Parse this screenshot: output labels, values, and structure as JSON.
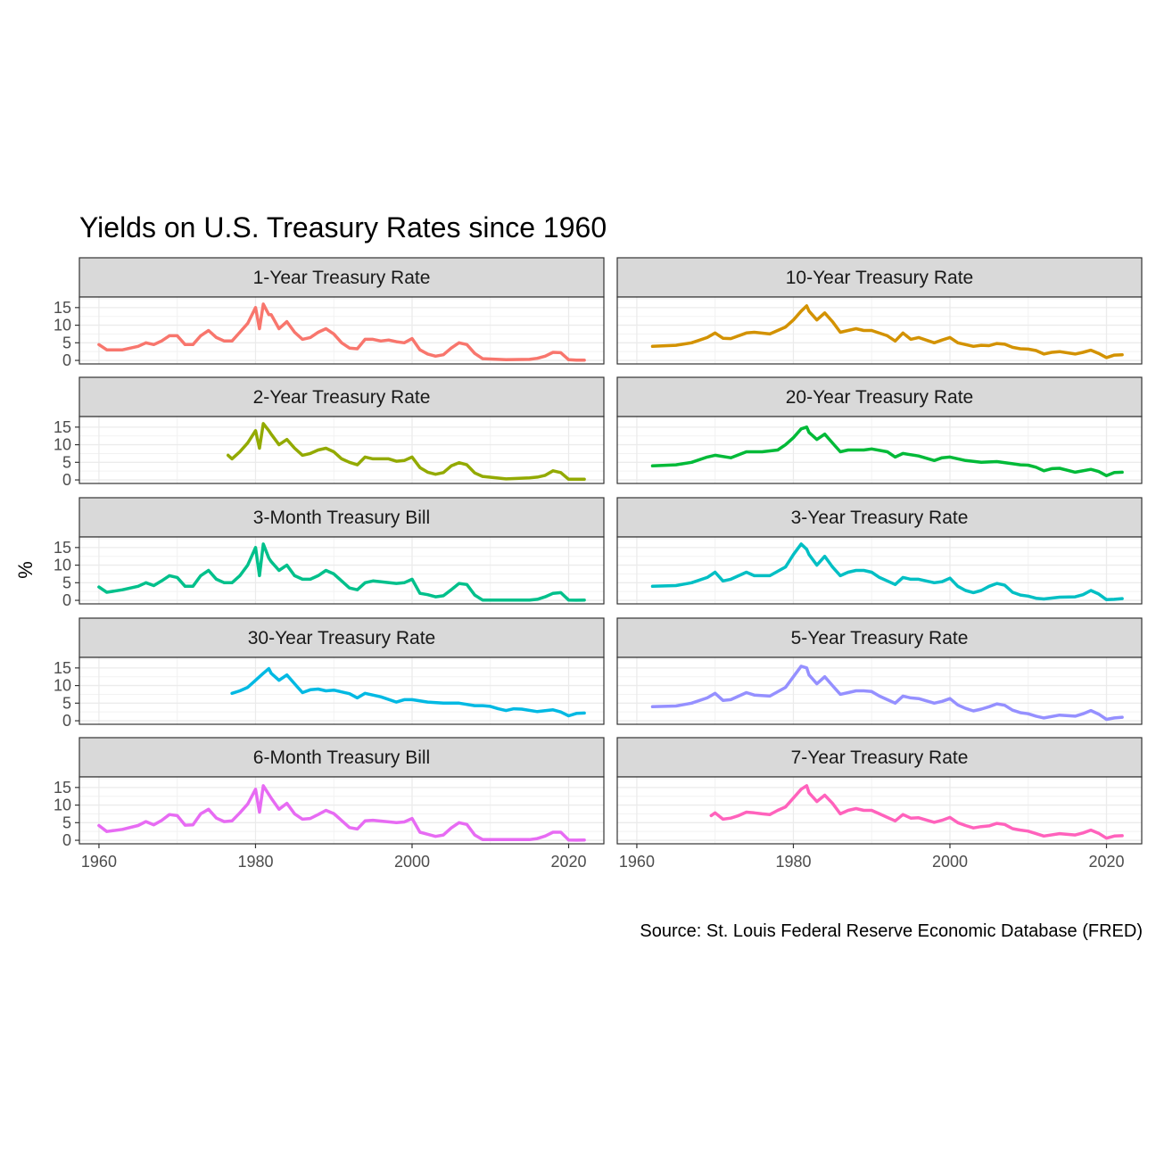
{
  "chart_data": {
    "type": "line",
    "title": "Yields on U.S. Treasury Rates since 1960",
    "ylabel": "%",
    "xlabel": "",
    "caption": "Source: St. Louis Federal Reserve Economic Database (FRED)",
    "xlim": [
      1957.5,
      2024.5
    ],
    "ylim": [
      -1,
      18
    ],
    "x_ticks": [
      1960,
      1980,
      2000,
      2020
    ],
    "y_ticks": [
      0,
      5,
      10,
      15
    ],
    "grid": true,
    "legend": "none",
    "layout": "facet grid, 5 rows x 2 columns",
    "panels": [
      {
        "name": "1-Year Treasury Rate",
        "color": "#F8766D",
        "x": [
          1960,
          1961,
          1963,
          1965,
          1966,
          1967,
          1968,
          1969,
          1970,
          1971,
          1972,
          1973,
          1974,
          1975,
          1976,
          1977,
          1978,
          1979,
          1980,
          1980.5,
          1981,
          1981.7,
          1982,
          1983,
          1984,
          1985,
          1986,
          1987,
          1988,
          1989,
          1990,
          1991,
          1992,
          1993,
          1994,
          1995,
          1996,
          1997,
          1998,
          1999,
          2000,
          2001,
          2002,
          2003,
          2004,
          2005,
          2006,
          2007,
          2008,
          2009,
          2012,
          2015,
          2016,
          2017,
          2018,
          2019,
          2020,
          2021,
          2022
        ],
        "y": [
          4.5,
          3,
          3,
          4,
          5,
          4.5,
          5.5,
          7,
          7,
          4.5,
          4.5,
          7,
          8.5,
          6.5,
          5.5,
          5.5,
          8,
          10.5,
          15,
          9,
          16,
          13,
          13,
          9,
          11,
          8,
          6,
          6.5,
          8,
          9,
          7.5,
          5,
          3.5,
          3.3,
          6,
          6,
          5.5,
          5.8,
          5.3,
          5,
          6.2,
          3,
          1.8,
          1.2,
          1.6,
          3.5,
          5,
          4.5,
          2,
          0.5,
          0.2,
          0.3,
          0.6,
          1.2,
          2.3,
          2.2,
          0.2,
          0.1,
          0.1
        ]
      },
      {
        "name": "10-Year Treasury Rate",
        "color": "#D39200",
        "x": [
          1962,
          1965,
          1967,
          1969,
          1970,
          1971,
          1972,
          1974,
          1975,
          1977,
          1979,
          1980,
          1981,
          1981.7,
          1982,
          1983,
          1984,
          1985,
          1986,
          1987,
          1988,
          1989,
          1990,
          1992,
          1993,
          1994,
          1995,
          1996,
          1998,
          1999,
          2000,
          2001,
          2002,
          2003,
          2004,
          2005,
          2006,
          2007,
          2008,
          2009,
          2010,
          2011,
          2012,
          2013,
          2014,
          2016,
          2017,
          2018,
          2019,
          2020,
          2021,
          2022
        ],
        "y": [
          4,
          4.3,
          5,
          6.5,
          7.8,
          6.3,
          6.2,
          7.8,
          8,
          7.5,
          9.5,
          11.5,
          14,
          15.5,
          14,
          11.5,
          13.5,
          11,
          8,
          8.5,
          9,
          8.5,
          8.5,
          7,
          5.5,
          7.8,
          6,
          6.5,
          5,
          5.8,
          6.5,
          5,
          4.5,
          4,
          4.3,
          4.2,
          4.8,
          4.6,
          3.7,
          3.3,
          3.2,
          2.8,
          1.8,
          2.3,
          2.5,
          1.8,
          2.3,
          2.9,
          2,
          0.8,
          1.5,
          1.6
        ]
      },
      {
        "name": "2-Year Treasury Rate",
        "color": "#93AA00",
        "x": [
          1976.5,
          1977,
          1978,
          1979,
          1980,
          1980.5,
          1981,
          1981.7,
          1982,
          1983,
          1984,
          1985,
          1986,
          1987,
          1988,
          1989,
          1990,
          1991,
          1992,
          1993,
          1994,
          1995,
          1996,
          1997,
          1998,
          1999,
          2000,
          2001,
          2002,
          2003,
          2004,
          2005,
          2006,
          2007,
          2008,
          2009,
          2012,
          2015,
          2016,
          2017,
          2018,
          2019,
          2020,
          2021,
          2022
        ],
        "y": [
          7,
          6,
          8,
          10.5,
          14,
          9,
          16,
          14,
          13,
          10,
          11.5,
          9,
          7,
          7.5,
          8.5,
          9,
          8,
          6,
          5,
          4.3,
          6.5,
          6,
          6,
          6,
          5.3,
          5.5,
          6.5,
          3.5,
          2.2,
          1.6,
          2.1,
          4,
          4.9,
          4.3,
          2,
          1,
          0.3,
          0.6,
          0.8,
          1.3,
          2.6,
          2.1,
          0.2,
          0.2,
          0.2
        ]
      },
      {
        "name": "20-Year Treasury Rate",
        "color": "#00BA38",
        "x": [
          1962,
          1965,
          1967,
          1969,
          1970,
          1972,
          1974,
          1976,
          1978,
          1979,
          1980,
          1981,
          1981.7,
          1982,
          1983,
          1984,
          1985,
          1986,
          1987,
          1989,
          1990,
          1992,
          1993,
          1994,
          1996,
          1998,
          1999,
          2000,
          2002,
          2004,
          2006,
          2008,
          2009,
          2010,
          2011,
          2012,
          2013,
          2014,
          2016,
          2018,
          2019,
          2020,
          2021,
          2022
        ],
        "y": [
          4,
          4.3,
          5,
          6.5,
          7,
          6.3,
          8,
          8,
          8.5,
          10,
          12,
          14.5,
          15,
          13.5,
          11.5,
          13,
          10.5,
          8,
          8.5,
          8.5,
          8.8,
          8,
          6.5,
          7.5,
          6.8,
          5.5,
          6.3,
          6.5,
          5.5,
          5,
          5.2,
          4.6,
          4.3,
          4.2,
          3.6,
          2.6,
          3.2,
          3.3,
          2.2,
          3,
          2.4,
          1.2,
          2.1,
          2.2
        ]
      },
      {
        "name": "3-Month Treasury Bill",
        "color": "#00C08B",
        "x": [
          1960,
          1961,
          1963,
          1965,
          1966,
          1967,
          1968,
          1969,
          1970,
          1971,
          1972,
          1973,
          1974,
          1975,
          1976,
          1977,
          1978,
          1979,
          1980,
          1980.5,
          1981,
          1981.7,
          1982,
          1983,
          1984,
          1985,
          1986,
          1987,
          1988,
          1989,
          1990,
          1991,
          1992,
          1993,
          1994,
          1995,
          1998,
          1999,
          2000,
          2001,
          2002,
          2003,
          2004,
          2005,
          2006,
          2007,
          2008,
          2009,
          2015,
          2016,
          2017,
          2018,
          2019,
          2020,
          2021,
          2022
        ],
        "y": [
          3.8,
          2.3,
          3,
          4,
          5,
          4.2,
          5.5,
          7,
          6.5,
          4,
          4,
          7,
          8.5,
          6,
          5,
          5,
          7,
          10,
          15,
          7,
          16,
          12,
          11,
          8.5,
          10,
          7,
          6,
          6,
          7,
          8.5,
          7.5,
          5.5,
          3.5,
          3,
          5,
          5.5,
          4.8,
          5,
          6,
          2,
          1.6,
          1,
          1.3,
          3,
          4.8,
          4.5,
          1.5,
          0.1,
          0.1,
          0.3,
          1,
          2,
          2.2,
          0.1,
          0.05,
          0.1
        ]
      },
      {
        "name": "3-Year Treasury Rate",
        "color": "#00BFC4",
        "x": [
          1962,
          1965,
          1967,
          1969,
          1970,
          1971,
          1972,
          1974,
          1975,
          1977,
          1979,
          1980,
          1981,
          1981.7,
          1982,
          1983,
          1984,
          1985,
          1986,
          1987,
          1988,
          1989,
          1990,
          1991,
          1992,
          1993,
          1994,
          1995,
          1996,
          1998,
          1999,
          2000,
          2001,
          2002,
          2003,
          2004,
          2005,
          2006,
          2007,
          2008,
          2009,
          2010,
          2011,
          2012,
          2014,
          2016,
          2017,
          2018,
          2019,
          2020,
          2021,
          2022
        ],
        "y": [
          4,
          4.2,
          5,
          6.5,
          8,
          5.5,
          6,
          8,
          7,
          7,
          9.5,
          13,
          16,
          14.5,
          13,
          10,
          12.5,
          9.5,
          7,
          8,
          8.5,
          8.5,
          8,
          6.5,
          5.5,
          4.5,
          6.5,
          6,
          6,
          5,
          5.3,
          6.3,
          4,
          2.8,
          2.2,
          2.8,
          4,
          4.8,
          4.3,
          2.3,
          1.5,
          1.2,
          0.6,
          0.4,
          0.9,
          1,
          1.6,
          2.8,
          1.8,
          0.2,
          0.3,
          0.5
        ]
      },
      {
        "name": "30-Year Treasury Rate",
        "color": "#00B9E3",
        "x": [
          1977,
          1978,
          1979,
          1980,
          1981,
          1981.7,
          1982,
          1983,
          1984,
          1985,
          1986,
          1987,
          1988,
          1989,
          1990,
          1992,
          1993,
          1994,
          1996,
          1998,
          1999,
          2000,
          2002,
          2004,
          2006,
          2008,
          2009,
          2010,
          2011,
          2012,
          2013,
          2014,
          2016,
          2018,
          2019,
          2020,
          2021,
          2022
        ],
        "y": [
          7.8,
          8.5,
          9.5,
          11.5,
          13.5,
          14.8,
          13.5,
          11.5,
          13,
          10.5,
          8,
          8.8,
          9,
          8.5,
          8.7,
          7.7,
          6.5,
          7.8,
          6.8,
          5.3,
          6,
          6,
          5.3,
          5,
          5,
          4.3,
          4.3,
          4.1,
          3.4,
          2.9,
          3.4,
          3.3,
          2.6,
          3.1,
          2.5,
          1.4,
          2.1,
          2.2
        ]
      },
      {
        "name": "5-Year Treasury Rate",
        "color": "#9590FF",
        "x": [
          1962,
          1965,
          1967,
          1969,
          1970,
          1971,
          1972,
          1974,
          1975,
          1977,
          1979,
          1980,
          1981,
          1981.7,
          1982,
          1983,
          1984,
          1985,
          1986,
          1987,
          1988,
          1989,
          1990,
          1991,
          1992,
          1993,
          1994,
          1995,
          1996,
          1998,
          1999,
          2000,
          2001,
          2002,
          2003,
          2004,
          2005,
          2006,
          2007,
          2008,
          2009,
          2010,
          2011,
          2012,
          2014,
          2016,
          2017,
          2018,
          2019,
          2020,
          2021,
          2022
        ],
        "y": [
          4,
          4.2,
          5,
          6.5,
          7.8,
          5.8,
          6,
          8,
          7.3,
          7,
          9.5,
          12.5,
          15.5,
          15,
          13,
          10.5,
          12.5,
          10,
          7.5,
          8,
          8.5,
          8.5,
          8.3,
          7,
          6,
          5,
          7,
          6.5,
          6.3,
          5,
          5.5,
          6.3,
          4.5,
          3.5,
          2.8,
          3.3,
          4,
          4.8,
          4.4,
          3,
          2.3,
          2,
          1.3,
          0.8,
          1.6,
          1.3,
          2,
          2.9,
          1.9,
          0.4,
          0.8,
          1
        ]
      },
      {
        "name": "6-Month Treasury Bill",
        "color": "#E76BF3",
        "x": [
          1960,
          1961,
          1963,
          1965,
          1966,
          1967,
          1968,
          1969,
          1970,
          1971,
          1972,
          1973,
          1974,
          1975,
          1976,
          1977,
          1978,
          1979,
          1980,
          1980.5,
          1981,
          1981.7,
          1982,
          1983,
          1984,
          1985,
          1986,
          1987,
          1988,
          1989,
          1990,
          1991,
          1992,
          1993,
          1994,
          1995,
          1998,
          1999,
          2000,
          2001,
          2002,
          2003,
          2004,
          2005,
          2006,
          2007,
          2008,
          2009,
          2015,
          2016,
          2017,
          2018,
          2019,
          2020,
          2021,
          2022
        ],
        "y": [
          4.2,
          2.5,
          3.1,
          4.2,
          5.3,
          4.4,
          5.6,
          7.3,
          7,
          4.3,
          4.4,
          7.5,
          8.8,
          6.3,
          5.3,
          5.5,
          7.8,
          10.3,
          14.5,
          8,
          15.5,
          13,
          12,
          8.8,
          10.5,
          7.5,
          6,
          6.2,
          7.3,
          8.5,
          7.6,
          5.6,
          3.6,
          3.2,
          5.5,
          5.7,
          5,
          5.2,
          6.2,
          2.3,
          1.7,
          1.1,
          1.5,
          3.5,
          5,
          4.5,
          1.5,
          0.2,
          0.2,
          0.5,
          1.2,
          2.3,
          2.3,
          0.1,
          0.05,
          0.1
        ]
      },
      {
        "name": "7-Year Treasury Rate",
        "color": "#FF62BC",
        "x": [
          1969.5,
          1970,
          1971,
          1972,
          1973,
          1974,
          1975,
          1976,
          1977,
          1978,
          1979,
          1980,
          1981,
          1981.7,
          1982,
          1983,
          1984,
          1985,
          1986,
          1987,
          1988,
          1989,
          1990,
          1991,
          1992,
          1993,
          1994,
          1995,
          1996,
          1998,
          1999,
          2000,
          2001,
          2002,
          2003,
          2004,
          2005,
          2006,
          2007,
          2008,
          2009,
          2010,
          2011,
          2012,
          2014,
          2016,
          2017,
          2018,
          2019,
          2020,
          2021,
          2022
        ],
        "y": [
          7,
          7.8,
          6,
          6.3,
          7,
          8,
          7.8,
          7.5,
          7.3,
          8.5,
          9.5,
          12,
          14.5,
          15.5,
          13.5,
          11,
          12.8,
          10.5,
          7.5,
          8.5,
          9,
          8.5,
          8.5,
          7.5,
          6.5,
          5.5,
          7.3,
          6.3,
          6.4,
          5.1,
          5.7,
          6.5,
          5,
          4.2,
          3.5,
          3.9,
          4.1,
          4.8,
          4.5,
          3.3,
          2.9,
          2.6,
          1.9,
          1.2,
          1.9,
          1.5,
          2.1,
          2.9,
          2,
          0.6,
          1.2,
          1.3
        ]
      }
    ]
  }
}
